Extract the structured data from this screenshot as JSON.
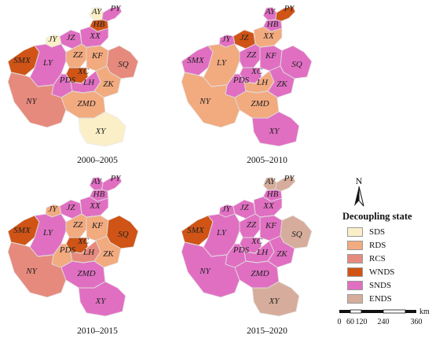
{
  "periods": [
    "2000–2005",
    "2005–2010",
    "2010–2015",
    "2015–2020"
  ],
  "north_label": "N",
  "legend": {
    "title": "Decoupling state",
    "items": [
      {
        "code": "SDS",
        "color": "#fbefc8"
      },
      {
        "code": "RDS",
        "color": "#f2aa7f"
      },
      {
        "code": "RCS",
        "color": "#e68a7d"
      },
      {
        "code": "WNDS",
        "color": "#cf5416"
      },
      {
        "code": "SNDS",
        "color": "#e06fc2"
      },
      {
        "code": "ENDS",
        "color": "#d6ad9c"
      }
    ]
  },
  "scale": {
    "ticks": [
      "0",
      "60",
      "120",
      "240",
      "360"
    ],
    "unit": "km"
  },
  "regions": [
    "AY",
    "PY",
    "HB",
    "JY",
    "JZ",
    "XX",
    "SMX",
    "LY",
    "ZZ",
    "KF",
    "SQ",
    "XC",
    "PDS",
    "LH",
    "ZK",
    "NY",
    "ZMD",
    "XY"
  ],
  "states": [
    {
      "AY": "SDS",
      "PY": "SNDS",
      "HB": "WNDS",
      "JY": "SDS",
      "JZ": "SNDS",
      "XX": "SNDS",
      "SMX": "WNDS",
      "LY": "SNDS",
      "ZZ": "RDS",
      "KF": "RDS",
      "SQ": "RCS",
      "XC": "WNDS",
      "PDS": "SNDS",
      "LH": "SNDS",
      "ZK": "RDS",
      "NY": "RCS",
      "ZMD": "RDS",
      "XY": "SDS"
    },
    {
      "AY": "SNDS",
      "PY": "WNDS",
      "HB": "SNDS",
      "JY": "SNDS",
      "JZ": "WNDS",
      "XX": "RDS",
      "SMX": "SNDS",
      "LY": "RDS",
      "ZZ": "SNDS",
      "KF": "SNDS",
      "SQ": "SNDS",
      "XC": "SNDS",
      "PDS": "SNDS",
      "LH": "RDS",
      "ZK": "SNDS",
      "NY": "RDS",
      "ZMD": "RDS",
      "XY": "SNDS"
    },
    {
      "AY": "SNDS",
      "PY": "SNDS",
      "HB": "SNDS",
      "JY": "RDS",
      "JZ": "SNDS",
      "XX": "SNDS",
      "SMX": "WNDS",
      "LY": "SNDS",
      "ZZ": "RDS",
      "KF": "RDS",
      "SQ": "WNDS",
      "XC": "WNDS",
      "PDS": "RDS",
      "LH": "RCS",
      "ZK": "RDS",
      "NY": "RCS",
      "ZMD": "SNDS",
      "XY": "SNDS"
    },
    {
      "AY": "ENDS",
      "PY": "ENDS",
      "HB": "SNDS",
      "JY": "SNDS",
      "JZ": "SNDS",
      "XX": "SNDS",
      "SMX": "WNDS",
      "LY": "SNDS",
      "ZZ": "SNDS",
      "KF": "SNDS",
      "SQ": "ENDS",
      "XC": "SNDS",
      "PDS": "SNDS",
      "LH": "SNDS",
      "ZK": "SNDS",
      "NY": "SNDS",
      "ZMD": "SNDS",
      "XY": "ENDS"
    }
  ]
}
